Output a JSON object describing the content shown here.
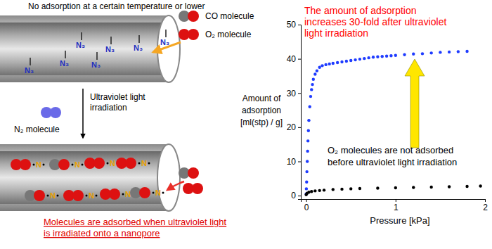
{
  "chart_data": {
    "type": "scatter",
    "xlabel": "Pressure [kPa]",
    "ylabel": [
      "Amount of",
      "adsorption",
      "[ml(stp) / g]"
    ],
    "xlim": [
      -0.06,
      2
    ],
    "ylim": [
      -1,
      50
    ],
    "xticks": [
      0,
      1,
      2
    ],
    "yticks": [
      0,
      10,
      20,
      30,
      40,
      50
    ],
    "grid": false,
    "annotations": [
      {
        "text": [
          "The amount of adsorption",
          "increases 30-fold after ultraviolet",
          "light irradiation"
        ],
        "color": "#ff0000"
      },
      {
        "text": [
          "O₂ molecules are not adsorbed",
          "before ultraviolet light irradiation"
        ],
        "color": "#000000"
      }
    ],
    "series": [
      {
        "color": "#1f3cff",
        "marker": "circle",
        "x": [
          0,
          0.002,
          0.005,
          0.008,
          0.012,
          0.016,
          0.02,
          0.025,
          0.03,
          0.04,
          0.05,
          0.06,
          0.07,
          0.08,
          0.1,
          0.12,
          0.15,
          0.18,
          0.22,
          0.26,
          0.3,
          0.35,
          0.4,
          0.45,
          0.5,
          0.55,
          0.6,
          0.65,
          0.7,
          0.75,
          0.8,
          0.85,
          0.9,
          0.95,
          1.0,
          1.1,
          1.2,
          1.3,
          1.4,
          1.5,
          1.6,
          1.7,
          1.8
        ],
        "values": [
          0.5,
          2,
          4,
          7,
          10,
          13,
          16,
          19,
          22,
          26,
          29,
          31,
          32.5,
          34,
          35.5,
          36.5,
          37.5,
          38,
          38.3,
          38.5,
          38.7,
          38.9,
          39.1,
          39.3,
          39.5,
          39.7,
          39.9,
          40.1,
          40.3,
          40.5,
          40.6,
          40.7,
          40.8,
          40.9,
          41,
          41.2,
          41.4,
          41.5,
          41.7,
          41.9,
          42,
          42.1,
          42.2
        ]
      },
      {
        "color": "#000000",
        "marker": "circle",
        "x": [
          0,
          0.01,
          0.03,
          0.06,
          0.1,
          0.15,
          0.2,
          0.3,
          0.4,
          0.5,
          0.6,
          0.8,
          1.0,
          1.2,
          1.4,
          1.6,
          1.8,
          1.95
        ],
        "values": [
          0.3,
          0.7,
          1.0,
          1.2,
          1.4,
          1.5,
          1.6,
          1.8,
          1.9,
          2.0,
          2.1,
          2.2,
          2.3,
          2.4,
          2.5,
          2.6,
          2.7,
          2.8
        ]
      }
    ]
  },
  "diagram": {
    "top_caption": "No adsorption at a certain temperature or lower",
    "co_label": "CO molecule",
    "o2_label": "O₂ molecule",
    "group_label": "N₃",
    "step_label": [
      "Ultraviolet light",
      "irradiation"
    ],
    "n2_label": "N₂ molecule",
    "radical_label": "N",
    "caption": [
      "Molecules are adsorbed when ultraviolet light",
      "is irradiated onto a nanopore"
    ]
  }
}
